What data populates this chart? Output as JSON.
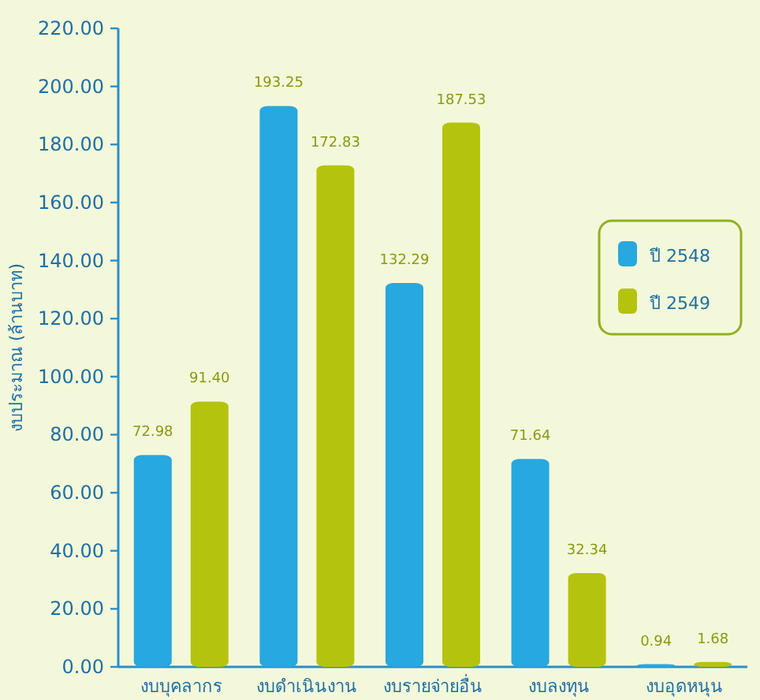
{
  "chart_data": {
    "type": "bar",
    "ylabel": "งบประมาณ (ล้านบาท)",
    "categories": [
      "งบบุคลากร",
      "งบดำเนินงาน",
      "งบรายจ่ายอื่น",
      "งบลงทุน",
      "งบอุดหนุน"
    ],
    "series": [
      {
        "name": "ปี 2548",
        "color": "#27a8df",
        "values": [
          72.98,
          193.25,
          132.29,
          71.64,
          0.94
        ],
        "value_labels": [
          "72.98",
          "193.25",
          "132.29",
          "71.64",
          "0.94"
        ]
      },
      {
        "name": "ปี 2549",
        "color": "#b4c40e",
        "values": [
          91.4,
          172.83,
          187.53,
          32.34,
          1.68
        ],
        "value_labels": [
          "91.40",
          "172.83",
          "187.53",
          "32.34",
          "1.68"
        ]
      }
    ],
    "ylim": [
      0,
      220
    ],
    "yticks": [
      {
        "value": 0,
        "label": "0.00"
      },
      {
        "value": 20,
        "label": "20.00"
      },
      {
        "value": 40,
        "label": "40.00"
      },
      {
        "value": 60,
        "label": "60.00"
      },
      {
        "value": 80,
        "label": "80.00"
      },
      {
        "value": 100,
        "label": "100.00"
      },
      {
        "value": 120,
        "label": "120.00"
      },
      {
        "value": 140,
        "label": "140.00"
      },
      {
        "value": 160,
        "label": "160.00"
      },
      {
        "value": 180,
        "label": "180.00"
      },
      {
        "value": 200,
        "label": "200.00"
      },
      {
        "value": 220,
        "label": "220.00"
      }
    ],
    "legend": "right"
  }
}
